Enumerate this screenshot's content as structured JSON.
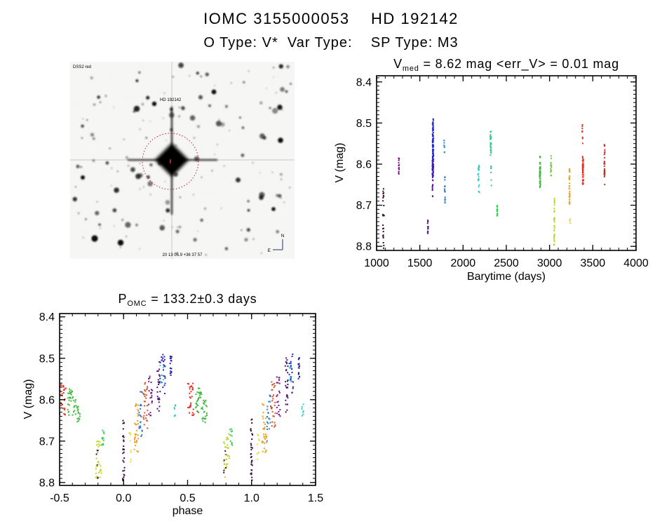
{
  "header": {
    "title": "IOMC 3155000053    HD 192142",
    "subtitle": "O Type: V*  Var Type:    SP Type: M3"
  },
  "finding_chart": {
    "label_topleft": "DSS2 red",
    "label_target": "HD 192142",
    "label_bottom": "20 13 05.9  +36 37 57",
    "compass_north": "N",
    "compass_east": "E",
    "circle_color": "#cc2222"
  },
  "chart_data": [
    {
      "id": "time",
      "type": "scatter",
      "title": "V_med = 8.62 mag <err_V> = 0.01 mag",
      "title_parts": {
        "pre": "V",
        "sub": "med",
        "post": " = 8.62 mag <err_V> = 0.01 mag"
      },
      "xlabel": "Barytime (days)",
      "ylabel": "V (mag)",
      "xlim": [
        1000,
        4000
      ],
      "ylim": [
        8.4,
        8.8
      ],
      "y_inverted": true,
      "grid": false,
      "xticks": [
        1000,
        1500,
        2000,
        2500,
        3000,
        3500,
        4000
      ],
      "xtick_labels": [
        "1000",
        "1500",
        "2000",
        "2500",
        "3000",
        "3500",
        "4000"
      ],
      "yticks": [
        8.4,
        8.5,
        8.6,
        8.7,
        8.8
      ],
      "ytick_labels": [
        "8.4",
        "8.5",
        "8.6",
        "8.7",
        "8.8"
      ],
      "fold_repeat": false,
      "clusters": [
        {
          "x": 1080,
          "xw": 14,
          "v": [
            8.66,
            8.81
          ],
          "n": 24,
          "c": "#3d0936"
        },
        {
          "x": 1258,
          "xw": 8,
          "v": [
            8.58,
            8.63
          ],
          "n": 14,
          "c": "#7a1880"
        },
        {
          "x": 1593,
          "xw": 8,
          "v": [
            8.73,
            8.77
          ],
          "n": 10,
          "c": "#4a1070"
        },
        {
          "x": 1652,
          "xw": 12,
          "v": [
            8.49,
            8.63
          ],
          "n": 110,
          "c": "#2626c8"
        },
        {
          "x": 1648,
          "xw": 10,
          "v": [
            8.59,
            8.68
          ],
          "n": 26,
          "c": "#5a10a0"
        },
        {
          "x": 1782,
          "xw": 8,
          "v": [
            8.54,
            8.61
          ],
          "n": 8,
          "c": "#3090d8"
        },
        {
          "x": 1790,
          "xw": 8,
          "v": [
            8.63,
            8.7
          ],
          "n": 15,
          "c": "#2878c8"
        },
        {
          "x": 2180,
          "xw": 16,
          "v": [
            8.6,
            8.64
          ],
          "n": 18,
          "c": "#30c8c8"
        },
        {
          "x": 2185,
          "xw": 10,
          "v": [
            8.65,
            8.68
          ],
          "n": 4,
          "c": "#30c8c8"
        },
        {
          "x": 2320,
          "xw": 10,
          "v": [
            8.52,
            8.58
          ],
          "n": 28,
          "c": "#38c890"
        },
        {
          "x": 2326,
          "xw": 8,
          "v": [
            8.6,
            8.66
          ],
          "n": 7,
          "c": "#38c890"
        },
        {
          "x": 2395,
          "xw": 6,
          "v": [
            8.7,
            8.73
          ],
          "n": 12,
          "c": "#28d048"
        },
        {
          "x": 2890,
          "xw": 10,
          "v": [
            8.58,
            8.66
          ],
          "n": 40,
          "c": "#38b838"
        },
        {
          "x": 3017,
          "xw": 8,
          "v": [
            8.58,
            8.63
          ],
          "n": 18,
          "c": "#68c838"
        },
        {
          "x": 3055,
          "xw": 8,
          "v": [
            8.68,
            8.8
          ],
          "n": 32,
          "c": "#bcd626"
        },
        {
          "x": 3230,
          "xw": 8,
          "v": [
            8.61,
            8.7
          ],
          "n": 38,
          "c": "#f0a020"
        },
        {
          "x": 3236,
          "xw": 6,
          "v": [
            8.73,
            8.75
          ],
          "n": 4,
          "c": "#e6d63c"
        },
        {
          "x": 3380,
          "xw": 6,
          "v": [
            8.49,
            8.57
          ],
          "n": 8,
          "c": "#e03020"
        },
        {
          "x": 3386,
          "xw": 10,
          "v": [
            8.58,
            8.65
          ],
          "n": 48,
          "c": "#e03020"
        },
        {
          "x": 3635,
          "xw": 8,
          "v": [
            8.55,
            8.65
          ],
          "n": 30,
          "c": "#c03028"
        }
      ]
    },
    {
      "id": "phase",
      "type": "scatter",
      "title": "P_OMC = 133.2±0.3 days",
      "title_parts": {
        "pre": "P",
        "sub": "OMC",
        "post": " = 133.2±0.3 days"
      },
      "xlabel": "phase",
      "ylabel": "V (mag)",
      "xlim": [
        -0.5,
        1.5
      ],
      "ylim": [
        8.4,
        8.8
      ],
      "y_inverted": true,
      "grid": false,
      "period_days": "133.2",
      "period_err_days": "0.3",
      "xticks": [
        -0.5,
        0.0,
        0.5,
        1.0,
        1.5
      ],
      "xtick_labels": [
        "-0.5",
        "0.0",
        "0.5",
        "1.0",
        "1.5"
      ],
      "yticks": [
        8.4,
        8.5,
        8.6,
        8.7,
        8.8
      ],
      "ytick_labels": [
        "8.4",
        "8.5",
        "8.6",
        "8.7",
        "8.8"
      ],
      "fold_repeat": true,
      "clusters": [
        {
          "x": 1.0,
          "xw": 0.015,
          "v": [
            8.64,
            8.8
          ],
          "n": 30,
          "c": "#3d0936"
        },
        {
          "x": 0.79,
          "xw": 0.02,
          "v": [
            8.72,
            8.79
          ],
          "n": 6,
          "c": "#3d0936"
        },
        {
          "x": 0.805,
          "xw": 0.045,
          "v": [
            8.68,
            8.79
          ],
          "n": 28,
          "c": "#bcd626"
        },
        {
          "x": 0.84,
          "xw": 0.02,
          "v": [
            8.67,
            8.71
          ],
          "n": 10,
          "c": "#2ed044"
        },
        {
          "x": 1.05,
          "xw": 0.02,
          "v": [
            8.68,
            8.75
          ],
          "n": 9,
          "c": "#e6de3c"
        },
        {
          "x": 1.1,
          "xw": 0.035,
          "v": [
            8.61,
            8.73
          ],
          "n": 32,
          "c": "#f0a020"
        },
        {
          "x": 1.135,
          "xw": 0.03,
          "v": [
            8.58,
            8.7
          ],
          "n": 22,
          "c": "#2e7ac8"
        },
        {
          "x": 1.17,
          "xw": 0.035,
          "v": [
            8.55,
            8.67
          ],
          "n": 28,
          "c": "#e05028"
        },
        {
          "x": 1.21,
          "xw": 0.03,
          "v": [
            8.54,
            8.64
          ],
          "n": 22,
          "c": "#7a1880"
        },
        {
          "x": 1.275,
          "xw": 0.025,
          "v": [
            8.49,
            8.63
          ],
          "n": 28,
          "c": "#4a1070"
        },
        {
          "x": 1.31,
          "xw": 0.03,
          "v": [
            8.49,
            8.59
          ],
          "n": 22,
          "c": "#2626c8"
        },
        {
          "x": 1.3,
          "xw": 0.03,
          "v": [
            8.51,
            8.56
          ],
          "n": 7,
          "c": "#30c8c8"
        },
        {
          "x": 1.37,
          "xw": 0.012,
          "v": [
            8.49,
            8.55
          ],
          "n": 16,
          "c": "#2020a0"
        },
        {
          "x": 1.4,
          "xw": 0.015,
          "v": [
            8.61,
            8.64
          ],
          "n": 7,
          "c": "#30c8c8"
        },
        {
          "x": 0.525,
          "xw": 0.05,
          "v": [
            8.56,
            8.64
          ],
          "n": 30,
          "c": "#e03020"
        },
        {
          "x": 0.585,
          "xw": 0.05,
          "v": [
            8.57,
            8.64
          ],
          "n": 26,
          "c": "#38b838"
        },
        {
          "x": 0.635,
          "xw": 0.05,
          "v": [
            8.6,
            8.66
          ],
          "n": 22,
          "c": "#38b838"
        }
      ]
    }
  ]
}
